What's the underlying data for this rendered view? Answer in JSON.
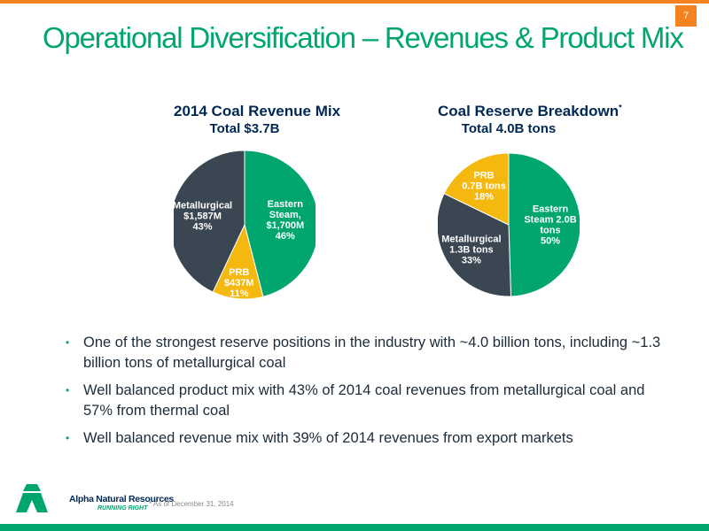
{
  "slide": {
    "title": "Operational Diversification – Revenues & Product Mix",
    "page_number": "7"
  },
  "chart_data": [
    {
      "type": "pie",
      "title": "2014 Coal Revenue Mix",
      "subtitle": "Total $3.7B",
      "slices": [
        {
          "name": "Eastern Steam",
          "value_label": "$1,700M",
          "percent": 46,
          "color": "#00a56f",
          "label_lines": [
            "Eastern",
            "Steam,",
            "$1,700M",
            "46%"
          ],
          "label_color": "#ffffff"
        },
        {
          "name": "PRB",
          "value_label": "$437M",
          "percent": 11,
          "color": "#f5b80f",
          "label_lines": [
            "PRB",
            "$437M",
            "11%"
          ],
          "label_color": "#ffffff"
        },
        {
          "name": "Metallurgical",
          "value_label": "$1,587M",
          "percent": 43,
          "color": "#3a4651",
          "label_lines": [
            "Metallurgical",
            "$1,587M",
            "43%"
          ],
          "label_color": "#ffffff"
        }
      ]
    },
    {
      "type": "pie",
      "title": "Coal Reserve Breakdown",
      "title_marker": "*",
      "subtitle": "Total 4.0B tons",
      "slices": [
        {
          "name": "Eastern Steam",
          "value_label": "2.0B tons",
          "percent": 50,
          "color": "#00a56f",
          "label_lines": [
            "Eastern",
            "Steam 2.0B",
            "tons",
            "50%"
          ],
          "label_color": "#ffffff"
        },
        {
          "name": "Metallurgical",
          "value_label": "1.3B tons",
          "percent": 33,
          "color": "#3a4651",
          "label_lines": [
            "Metallurgical",
            "1.3B tons",
            "33%"
          ],
          "label_color": "#ffffff"
        },
        {
          "name": "PRB",
          "value_label": "0.7B tons",
          "percent": 18,
          "color": "#f5b80f",
          "label_lines": [
            "PRB",
            "0.7B tons",
            "18%"
          ],
          "label_color": "#ffffff"
        }
      ]
    }
  ],
  "bullets": [
    "One of the strongest reserve positions in the industry with ~4.0 billion tons, including ~1.3 billion tons of metallurgical coal",
    "Well balanced product mix with 43% of 2014 coal revenues from metallurgical coal and 57% from thermal coal",
    "Well balanced revenue mix with 39% of 2014 revenues from export markets"
  ],
  "footer": {
    "brand": "Alpha Natural Resources",
    "tagline": "RUNNING RIGHT",
    "footnote": "* As of December 31, 2014"
  },
  "colors": {
    "accent_orange": "#f58220",
    "brand_green": "#00a56f",
    "title_navy": "#002855"
  }
}
